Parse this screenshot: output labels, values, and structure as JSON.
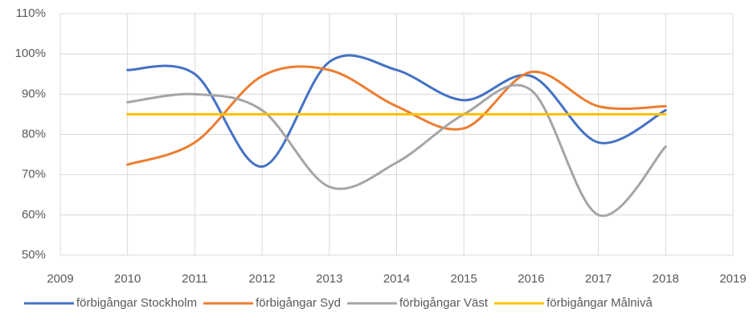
{
  "chart_data": {
    "type": "line",
    "xlim": [
      2009,
      2019
    ],
    "xticks": [
      2009,
      2010,
      2011,
      2012,
      2013,
      2014,
      2015,
      2016,
      2017,
      2018,
      2019
    ],
    "ylim": [
      50,
      110
    ],
    "yticks": [
      {
        "value": 50,
        "label": "50%"
      },
      {
        "value": 60,
        "label": "60%"
      },
      {
        "value": 70,
        "label": "70%"
      },
      {
        "value": 80,
        "label": "80%"
      },
      {
        "value": 90,
        "label": "90%"
      },
      {
        "value": 100,
        "label": "100%"
      },
      {
        "value": 110,
        "label": "110%"
      }
    ],
    "grid": true,
    "legend": "bottom",
    "smooth": true,
    "x": [
      2010,
      2011,
      2012,
      2013,
      2014,
      2015,
      2016,
      2017,
      2018
    ],
    "series": [
      {
        "name": "förbigångar Stockholm",
        "color": "#4472c4",
        "values": [
          96,
          95,
          72,
          98,
          96,
          88.5,
          94.5,
          78,
          86
        ]
      },
      {
        "name": "förbigångar Syd",
        "color": "#ed7d31",
        "values": [
          72.5,
          78,
          94.5,
          96,
          87,
          81.5,
          95.5,
          87,
          87
        ]
      },
      {
        "name": "förbigångar Väst",
        "color": "#a5a5a5",
        "values": [
          88,
          90,
          86,
          67,
          73,
          85,
          91,
          60,
          77
        ]
      },
      {
        "name": "förbigångar Målnivå",
        "color": "#ffc000",
        "values": [
          85,
          85,
          85,
          85,
          85,
          85,
          85,
          85,
          85
        ]
      }
    ]
  }
}
